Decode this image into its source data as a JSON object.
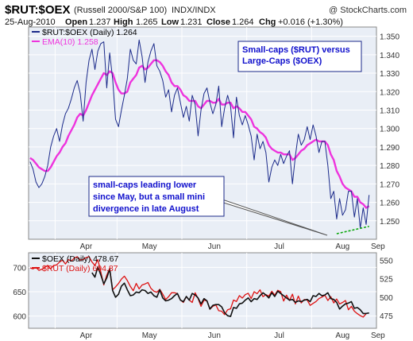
{
  "header": {
    "symbol": "$RUT:$OEX",
    "description": "(Russell 2000/S&P 100)",
    "exchange": "INDX/INDX",
    "watermark": "@ StockCharts.com",
    "date": "25-Aug-2010",
    "open_label": "Open",
    "open": "1.237",
    "high_label": "High",
    "high": "1.265",
    "low_label": "Low",
    "low": "1.231",
    "close_label": "Close",
    "close": "1.264",
    "chg_label": "Chg",
    "chg": "+0.016 (+1.30%)"
  },
  "annotations": {
    "title_box_line1": "Small-caps ($RUT) versus",
    "title_box_line2": "Large-Caps ($OEX)",
    "note_line1": "small-caps leading lower",
    "note_line2": "since May, but a small mini",
    "note_line3": "divergence in late August"
  },
  "colors": {
    "background": "#ffffff",
    "plot_background": "#e9eef6",
    "grid": "#ffffff",
    "ratio_line": "#1b2a8a",
    "ema_line": "#ee33dd",
    "oex_line": "#111111",
    "rut_line": "#dd1111",
    "divergence_line": "#11aa11",
    "annotation_text": "#1010cc",
    "axis_text": "#333333"
  },
  "chart_data": [
    {
      "type": "line",
      "panel": "main",
      "x_labels": [
        "Apr",
        "May",
        "Jun",
        "Jul",
        "Aug",
        "Sep"
      ],
      "ylim": [
        1.24,
        1.355
      ],
      "y_ticks": [
        "1.250",
        "1.260",
        "1.270",
        "1.280",
        "1.290",
        "1.300",
        "1.310",
        "1.320",
        "1.330",
        "1.340",
        "1.350"
      ],
      "grid": true,
      "legend_position": "top-left",
      "series": [
        {
          "name": "$RUT:$OEX (Daily) 1.264",
          "values": [
            1.282,
            1.278,
            1.271,
            1.268,
            1.27,
            1.274,
            1.28,
            1.29,
            1.296,
            1.3,
            1.293,
            1.302,
            1.308,
            1.311,
            1.316,
            1.322,
            1.326,
            1.319,
            1.304,
            1.325,
            1.337,
            1.343,
            1.332,
            1.342,
            1.346,
            1.347,
            1.322,
            1.341,
            1.327,
            1.305,
            1.301,
            1.31,
            1.318,
            1.327,
            1.343,
            1.337,
            1.335,
            1.348,
            1.339,
            1.325,
            1.336,
            1.342,
            1.346,
            1.334,
            1.331,
            1.326,
            1.317,
            1.321,
            1.309,
            1.318,
            1.322,
            1.314,
            1.306,
            1.312,
            1.304,
            1.318,
            1.313,
            1.296,
            1.31,
            1.319,
            1.322,
            1.314,
            1.308,
            1.313,
            1.323,
            1.301,
            1.311,
            1.318,
            1.312,
            1.295,
            1.317,
            1.307,
            1.302,
            1.307,
            1.302,
            1.296,
            1.283,
            1.297,
            1.289,
            1.293,
            1.287,
            1.271,
            1.279,
            1.283,
            1.28,
            1.286,
            1.281,
            1.285,
            1.288,
            1.27,
            1.285,
            1.297,
            1.291,
            1.294,
            1.301,
            1.294,
            1.302,
            1.296,
            1.287,
            1.293,
            1.293,
            1.28,
            1.262,
            1.266,
            1.251,
            1.262,
            1.253,
            1.256,
            1.266,
            1.266,
            1.252,
            1.262,
            1.246,
            1.257,
            1.248,
            1.264
          ]
        },
        {
          "name": "EMA(10) 1.258",
          "values": [
            1.284,
            1.283,
            1.281,
            1.279,
            1.278,
            1.277,
            1.277,
            1.279,
            1.282,
            1.285,
            1.287,
            1.29,
            1.292,
            1.296,
            1.299,
            1.302,
            1.306,
            1.308,
            1.307,
            1.31,
            1.314,
            1.318,
            1.321,
            1.324,
            1.327,
            1.33,
            1.329,
            1.331,
            1.33,
            1.325,
            1.321,
            1.319,
            1.319,
            1.32,
            1.325,
            1.327,
            1.329,
            1.333,
            1.334,
            1.332,
            1.333,
            1.335,
            1.337,
            1.337,
            1.336,
            1.334,
            1.331,
            1.329,
            1.325,
            1.323,
            1.323,
            1.321,
            1.318,
            1.317,
            1.315,
            1.315,
            1.315,
            1.312,
            1.311,
            1.313,
            1.315,
            1.315,
            1.314,
            1.314,
            1.316,
            1.313,
            1.313,
            1.314,
            1.314,
            1.311,
            1.312,
            1.311,
            1.309,
            1.309,
            1.307,
            1.305,
            1.301,
            1.3,
            1.298,
            1.297,
            1.295,
            1.291,
            1.289,
            1.288,
            1.287,
            1.287,
            1.286,
            1.286,
            1.286,
            1.283,
            1.284,
            1.286,
            1.288,
            1.289,
            1.291,
            1.292,
            1.293,
            1.294,
            1.293,
            1.293,
            1.293,
            1.291,
            1.286,
            1.283,
            1.277,
            1.274,
            1.27,
            1.268,
            1.267,
            1.266,
            1.263,
            1.263,
            1.26,
            1.259,
            1.257,
            1.258
          ]
        }
      ],
      "divergence": {
        "x": [
          104,
          115
        ],
        "values": [
          1.243,
          1.247
        ]
      }
    },
    {
      "type": "line",
      "panel": "lower",
      "x_labels": [
        "Apr",
        "May",
        "Jun",
        "Jul",
        "Aug",
        "Sep"
      ],
      "left_ylim": [
        575,
        730
      ],
      "left_ticks": [
        "600",
        "650",
        "700"
      ],
      "right_ylim": [
        458,
        560
      ],
      "right_ticks": [
        "475",
        "500",
        "525",
        "550"
      ],
      "grid": true,
      "legend_position": "top-left",
      "series": [
        {
          "name": "$OEX (Daily) 478.67",
          "axis": "right",
          "values": [
            null,
            null,
            null,
            null,
            null,
            null,
            null,
            null,
            null,
            null,
            null,
            null,
            null,
            null,
            null,
            null,
            null,
            null,
            null,
            null,
            null,
            533,
            527,
            541,
            530,
            518,
            526,
            538,
            509,
            500,
            504,
            515,
            519,
            510,
            502,
            503,
            507,
            506,
            510,
            509,
            505,
            507,
            502,
            500,
            510,
            499,
            495,
            496,
            498,
            502,
            505,
            496,
            494,
            501,
            496,
            505,
            503,
            499,
            491,
            498,
            495,
            484,
            489,
            490,
            490,
            487,
            479,
            475,
            474,
            486,
            485,
            491,
            492,
            496,
            499,
            494,
            498,
            497,
            502,
            506,
            503,
            499,
            506,
            501,
            508,
            505,
            502,
            499,
            496,
            497,
            493,
            495,
            494,
            496,
            497,
            494,
            502,
            501,
            505,
            502,
            503,
            506,
            498,
            497,
            493,
            484,
            488,
            491,
            492,
            494,
            485,
            486,
            483,
            478,
            478,
            478.67
          ]
        },
        {
          "name": "$RUT (Daily) 604.87",
          "axis": "left",
          "values": [
            699,
            697,
            700,
            694,
            696,
            700,
            704,
            697,
            704,
            705,
            711,
            715,
            707,
            716,
            713,
            719,
            722,
            715,
            716,
            720,
            722,
            711,
            704,
            716,
            691,
            664,
            684,
            698,
            654,
            660,
            667,
            676,
            682,
            673,
            661,
            652,
            667,
            656,
            664,
            666,
            669,
            657,
            651,
            649,
            655,
            645,
            634,
            640,
            648,
            648,
            646,
            633,
            628,
            640,
            633,
            628,
            648,
            636,
            620,
            633,
            631,
            614,
            620,
            623,
            611,
            610,
            603,
            613,
            615,
            633,
            630,
            642,
            637,
            644,
            647,
            636,
            650,
            646,
            654,
            640,
            644,
            641,
            651,
            643,
            653,
            650,
            631,
            643,
            632,
            645,
            625,
            641,
            627,
            634,
            633,
            622,
            626,
            630,
            636,
            639,
            643,
            632,
            640,
            627,
            635,
            625,
            628,
            632,
            613,
            620,
            610,
            605,
            601,
            598,
            604.87
          ]
        }
      ]
    }
  ]
}
